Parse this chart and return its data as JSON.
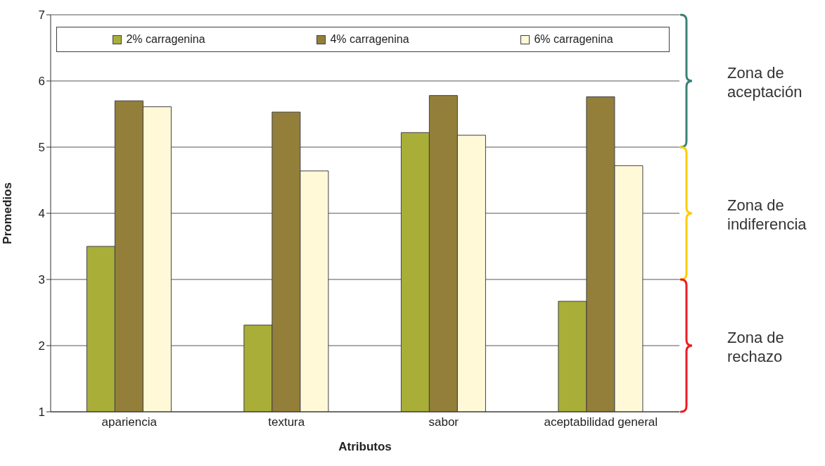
{
  "chart_data": {
    "type": "bar",
    "xlabel": "Atributos",
    "ylabel": "Promedios",
    "categories": [
      "apariencia",
      "textura",
      "sabor",
      "aceptabilidad general"
    ],
    "series": [
      {
        "name": "2% carragenina",
        "color": "#a8ae38",
        "values": [
          3.5,
          2.31,
          5.22,
          2.67
        ]
      },
      {
        "name": "4% carragenina",
        "color": "#937f3a",
        "values": [
          5.7,
          5.53,
          5.78,
          5.76
        ]
      },
      {
        "name": "6% carragenina",
        "color": "#fff9d8",
        "values": [
          5.61,
          4.64,
          5.18,
          4.72
        ]
      }
    ],
    "ylim": [
      1,
      7
    ],
    "yticks": [
      1,
      2,
      3,
      4,
      5,
      6,
      7
    ],
    "grid": "y",
    "legend": "top",
    "annotations": [
      "Zona de aceptación",
      "Zona de indiferencia",
      "Zona de rechazo"
    ]
  }
}
